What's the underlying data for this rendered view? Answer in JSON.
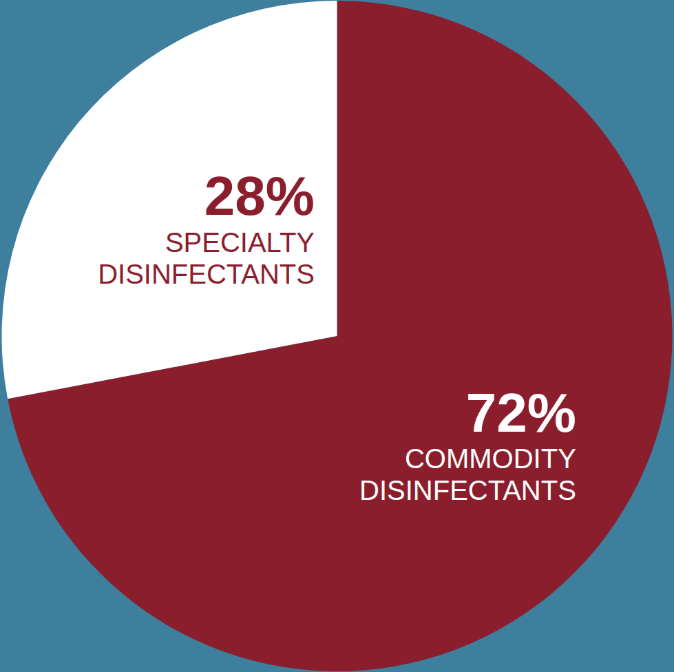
{
  "chart_data": {
    "type": "pie",
    "categories": [
      "COMMODITY DISINFECTANTS",
      "SPECIALTY DISINFECTANTS"
    ],
    "values": [
      72,
      28
    ],
    "value_labels": [
      "72%",
      "28%"
    ],
    "colors": [
      "#8B1E2D",
      "#FFFFFF"
    ],
    "data_labels": true
  }
}
